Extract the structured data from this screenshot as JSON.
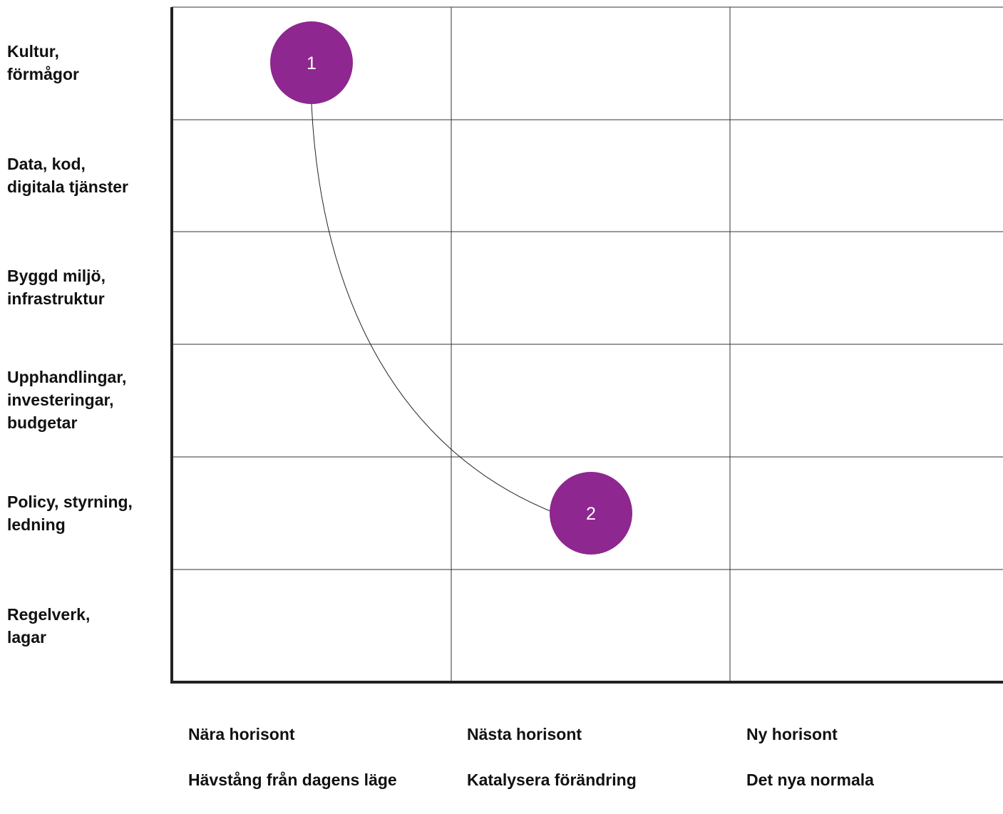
{
  "rows": [
    "Kultur,\nförmågor",
    "Data, kod,\ndigitala tjänster",
    "Byggd miljö,\ninfrastruktur",
    "Upphandlingar,\ninvesteringar,\nbudgetar",
    "Policy, styrning,\nledning",
    "Regelverk,\nlagar"
  ],
  "columns": [
    {
      "title": "Nära horisont",
      "subtitle": "Hävstång från dagens läge"
    },
    {
      "title": "Nästa horisont",
      "subtitle": "Katalysera förändring"
    },
    {
      "title": "Ny horisont",
      "subtitle": "Det nya normala"
    }
  ],
  "markers": [
    {
      "label": "1",
      "row": "Kultur,\nförmågor",
      "column": "Nära horisont"
    },
    {
      "label": "2",
      "row": "Policy, styrning,\nledning",
      "column": "Nästa horisont"
    }
  ],
  "colors": {
    "marker": "#8e278f",
    "marker_text": "#ffffff",
    "grid": "#333333",
    "text": "#111111"
  }
}
